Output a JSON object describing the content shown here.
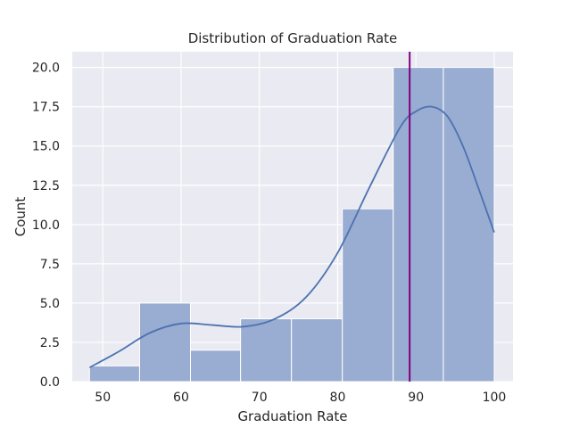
{
  "chart_data": {
    "type": "bar",
    "title": "Distribution of Graduation Rate",
    "xlabel": "Graduation Rate",
    "ylabel": "Count",
    "xlim": [
      46.1,
      102.4
    ],
    "ylim": [
      0,
      21.0
    ],
    "xticks": [
      50,
      60,
      70,
      80,
      90,
      100
    ],
    "yticks": [
      0.0,
      2.5,
      5.0,
      7.5,
      10.0,
      12.5,
      15.0,
      17.5,
      20.0
    ],
    "ytick_labels": [
      "0.0",
      "2.5",
      "5.0",
      "7.5",
      "10.0",
      "12.5",
      "15.0",
      "17.5",
      "20.0"
    ],
    "bins": [
      {
        "x0": 48.3,
        "x1": 54.7,
        "count": 1
      },
      {
        "x0": 54.7,
        "x1": 61.2,
        "count": 5
      },
      {
        "x0": 61.2,
        "x1": 67.6,
        "count": 2
      },
      {
        "x0": 67.6,
        "x1": 74.1,
        "count": 4
      },
      {
        "x0": 74.1,
        "x1": 80.6,
        "count": 4
      },
      {
        "x0": 80.6,
        "x1": 87.1,
        "count": 11
      },
      {
        "x0": 87.1,
        "x1": 93.5,
        "count": 20
      },
      {
        "x0": 93.5,
        "x1": 100.0,
        "count": 20
      }
    ],
    "kde_curve": {
      "x": [
        48.3,
        52,
        56,
        60,
        64,
        68,
        72,
        76,
        80,
        84,
        88,
        90,
        92,
        94,
        96,
        98,
        100
      ],
      "y": [
        0.9,
        1.9,
        3.1,
        3.7,
        3.6,
        3.5,
        4.0,
        5.4,
        8.2,
        12.3,
        16.2,
        17.2,
        17.5,
        16.9,
        15.0,
        12.3,
        9.5
      ]
    },
    "mean_line": {
      "x": 89.2,
      "color": "#800080"
    },
    "colors": {
      "background": "#eaeaf2",
      "grid": "#ffffff",
      "bar_fill": "#99acd1",
      "bar_edge": "#ffffff",
      "kde_line": "#4c72b0"
    },
    "grid": true
  }
}
